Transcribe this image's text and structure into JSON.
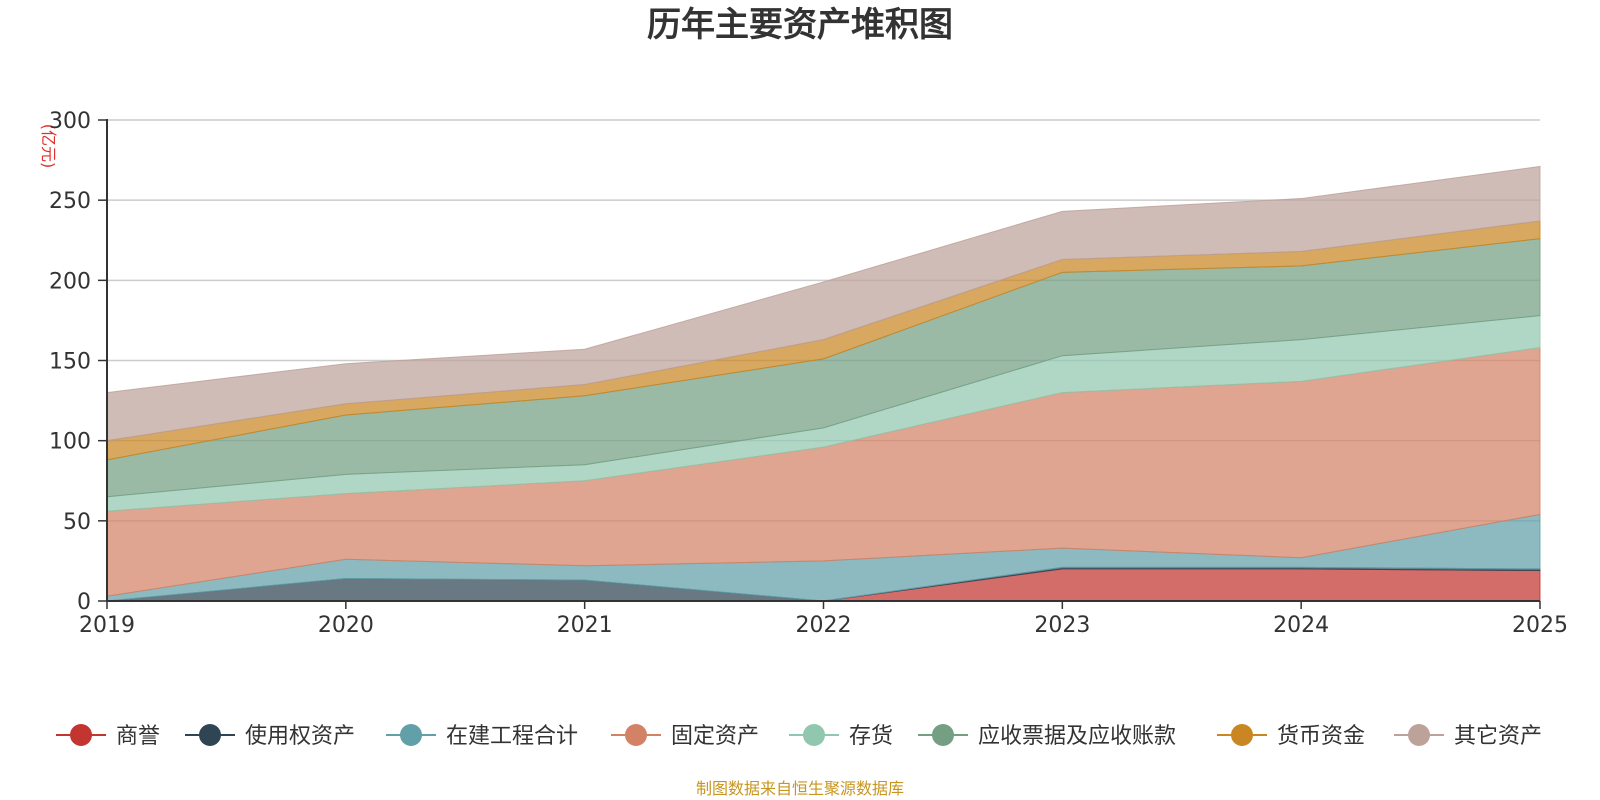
{
  "chart_data": {
    "type": "area",
    "stacked": true,
    "title": "历年主要资产堆积图",
    "unit_label": "(亿元)",
    "categories": [
      "2019",
      "2020",
      "2021",
      "2022",
      "2023",
      "2024",
      "2025"
    ],
    "ylim": [
      0,
      300
    ],
    "yticks": [
      "0",
      "50",
      "100",
      "150",
      "200",
      "250",
      "300"
    ],
    "grid": true,
    "legend_position": "bottom",
    "series": [
      {
        "name": "商誉",
        "color": "#c23531",
        "values": [
          0,
          0,
          0,
          0,
          20,
          20,
          19
        ]
      },
      {
        "name": "使用权资产",
        "color": "#2f4554",
        "values": [
          0,
          14,
          13,
          0,
          1,
          1,
          1
        ]
      },
      {
        "name": "在建工程合计",
        "color": "#61a0a8",
        "values": [
          3,
          12,
          9,
          25,
          12,
          6,
          34
        ]
      },
      {
        "name": "固定资产",
        "color": "#d48265",
        "values": [
          53,
          41,
          53,
          71,
          97,
          110,
          104
        ]
      },
      {
        "name": "存货",
        "color": "#91c7ae",
        "values": [
          9,
          12,
          10,
          12,
          23,
          26,
          20
        ]
      },
      {
        "name": "应收票据及应收账款",
        "color": "#749f83",
        "values": [
          23,
          37,
          43,
          43,
          52,
          46,
          48
        ]
      },
      {
        "name": "货币资金",
        "color": "#ca8622",
        "values": [
          12,
          7,
          7,
          12,
          8,
          9,
          11
        ]
      },
      {
        "name": "其它资产",
        "color": "#bda29a",
        "values": [
          30,
          25,
          22,
          36,
          30,
          33,
          34
        ]
      }
    ],
    "source_note": "制图数据来自恒生聚源数据库"
  }
}
